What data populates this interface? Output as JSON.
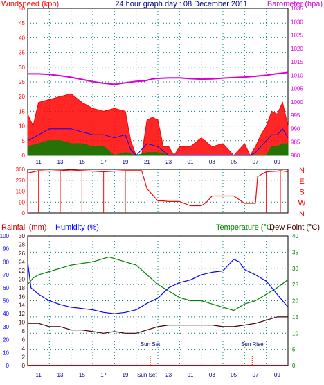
{
  "chart_data": [
    {
      "type": "line",
      "title": "24 hour graph day : 08 December 2011",
      "left_axis_label": "Windspeed (kph)",
      "right_axis_label": "Barometer (hpa)",
      "left_ylim": [
        0,
        50
      ],
      "left_ticks": [
        "0",
        "5",
        "10",
        "15",
        "20",
        "25",
        "30",
        "35",
        "40",
        "45",
        "50"
      ],
      "right_ylim": [
        980,
        1035
      ],
      "right_ticks": [
        "980",
        "985",
        "990",
        "995",
        "1000",
        "1005",
        "1010",
        "1015",
        "1020",
        "1025",
        "1030",
        "1035"
      ],
      "x_tick_labels": [
        "11",
        "13",
        "15",
        "17",
        "19",
        "21",
        "23",
        "01",
        "03",
        "05",
        "07",
        "09"
      ],
      "grid": true,
      "series": [
        {
          "role": "barometer",
          "color": "#d800d8",
          "axis": "right",
          "x": [
            0,
            1,
            2,
            3,
            4,
            5,
            6,
            7,
            8,
            9,
            10,
            10.8,
            11.5,
            12,
            13,
            14,
            15,
            16,
            17,
            18,
            19,
            20,
            21,
            22,
            23,
            24
          ],
          "values": [
            1010.5,
            1010.5,
            1010.3,
            1009.8,
            1009.2,
            1008.4,
            1007.6,
            1007,
            1006.6,
            1007.2,
            1007.7,
            1007.9,
            1008.6,
            1008.8,
            1009.0,
            1009.0,
            1008.7,
            1008.5,
            1008.6,
            1008.9,
            1009.1,
            1009.3,
            1009.6,
            1010.0,
            1010.6,
            1011.0
          ]
        },
        {
          "role": "gust",
          "color": "#ff0000",
          "axis": "left",
          "x": [
            0,
            0.5,
            1,
            2,
            3,
            4,
            5,
            6,
            7,
            8,
            9,
            9.5,
            10,
            10.5,
            11,
            11.5,
            12,
            12.5,
            13,
            13.5,
            14,
            15,
            16,
            17,
            18,
            19,
            20,
            20.5,
            21,
            21.5,
            22,
            22.5,
            23,
            23.5,
            24
          ],
          "values": [
            14,
            10,
            18,
            19,
            20,
            21,
            18,
            16,
            15,
            16,
            15,
            5,
            0,
            0,
            12,
            13,
            12,
            3,
            3,
            0,
            3,
            3,
            6,
            3,
            4,
            0,
            4,
            0,
            3,
            7,
            10,
            15,
            14,
            18,
            10
          ]
        },
        {
          "role": "average",
          "color": "#0000ff",
          "axis": "left",
          "x": [
            0,
            1,
            2,
            3,
            4,
            5,
            6,
            7,
            8,
            9,
            9.5,
            10,
            11,
            12,
            13,
            14,
            15,
            16,
            17,
            18,
            19,
            20,
            20.5,
            21,
            21.5,
            22,
            22.5,
            23,
            23.5,
            24
          ],
          "values": [
            5,
            7,
            9,
            9,
            9,
            8,
            7,
            7,
            6,
            7,
            2,
            0,
            4,
            3,
            0,
            0,
            0,
            0,
            0,
            0,
            0,
            0,
            0,
            1,
            3,
            5,
            7,
            7,
            9,
            6
          ]
        },
        {
          "role": "calm",
          "color": "#008000",
          "axis": "left",
          "x": [
            0,
            1,
            2,
            3,
            4,
            5,
            6,
            7,
            8,
            9,
            10,
            11,
            12,
            13,
            14,
            15,
            16,
            17,
            18,
            19,
            20,
            21,
            22,
            22.5,
            23,
            23.5,
            24
          ],
          "values": [
            3,
            4,
            5,
            5,
            4,
            4,
            3,
            3,
            0,
            1,
            0,
            1,
            1,
            0,
            0,
            0,
            0,
            0,
            0,
            0,
            0,
            0,
            0,
            3,
            3,
            4,
            4
          ]
        }
      ]
    },
    {
      "type": "line",
      "left_ylim": [
        0,
        360
      ],
      "left_ticks": [
        "0",
        "90",
        "180",
        "270",
        "360"
      ],
      "right_labels": [
        "N",
        "W",
        "S",
        "E",
        "N"
      ],
      "grid": true,
      "series": [
        {
          "role": "direction",
          "color": "#ff0000",
          "x": [
            0,
            0.6,
            1,
            2,
            3,
            4,
            5,
            6,
            7,
            8,
            9,
            10.5,
            10.8,
            11,
            11.5,
            12,
            12.5,
            13,
            14,
            15,
            16,
            16.5,
            17,
            18,
            19,
            20,
            21,
            21.2,
            22,
            23,
            23.3,
            24
          ],
          "values": [
            330,
            340,
            350,
            345,
            350,
            355,
            350,
            345,
            340,
            345,
            350,
            350,
            260,
            200,
            150,
            100,
            100,
            95,
            95,
            60,
            60,
            90,
            140,
            140,
            140,
            80,
            80,
            300,
            340,
            345,
            350,
            340
          ]
        }
      ]
    },
    {
      "type": "line",
      "left_axis_label": "Rainfall (mm)",
      "left_axis_label2": "Humidity (%)",
      "right_axis_label": "Temperature (°C)",
      "right_axis_label2": "Dew Point (°C)",
      "rain_ylim": [
        0,
        30
      ],
      "rain_ticks": [
        "0",
        "2",
        "4",
        "6",
        "8",
        "10",
        "12",
        "14",
        "16",
        "18",
        "20",
        "22",
        "24",
        "26",
        "28",
        "30"
      ],
      "humidity_ylim": [
        0,
        100
      ],
      "humidity_ticks": [
        "0",
        "10",
        "20",
        "30",
        "40",
        "50",
        "60",
        "70",
        "80",
        "90",
        "100"
      ],
      "temp_ylim": [
        0,
        40
      ],
      "temp_ticks": [
        "0",
        "5",
        "10",
        "15",
        "20",
        "25",
        "30",
        "35",
        "40"
      ],
      "x_tick_labels": [
        "11",
        "13",
        "15",
        "17",
        "19",
        "Sun Set",
        "23",
        "01",
        "03",
        "05",
        "07",
        "09"
      ],
      "annotations": [
        {
          "text": "Sun Set",
          "x": 11.3
        },
        {
          "text": "Sun Rise",
          "x": 20.7
        }
      ],
      "grid": true,
      "series": [
        {
          "role": "temperature",
          "color": "#008000",
          "axis": "temp",
          "x": [
            0,
            0.5,
            1,
            2,
            3,
            4,
            5,
            6,
            7,
            7.5,
            8,
            9,
            10,
            11,
            12,
            13,
            14,
            15,
            16,
            17,
            18,
            19,
            20,
            21,
            22,
            23,
            24
          ],
          "values": [
            25,
            27,
            28,
            29,
            30,
            31,
            31.5,
            32,
            33,
            33.5,
            33,
            32,
            31,
            28,
            25,
            23,
            21,
            20,
            20,
            19,
            18,
            17,
            19,
            20,
            22,
            24,
            26.5
          ]
        },
        {
          "role": "humidity",
          "color": "#0000ff",
          "axis": "humidity",
          "x": [
            0,
            0.3,
            1,
            2,
            3,
            4,
            5,
            6,
            7,
            8,
            9,
            10,
            11,
            12,
            13,
            14,
            15,
            16,
            17,
            18,
            19,
            19.5,
            20,
            21,
            22,
            23,
            24
          ],
          "values": [
            80,
            60,
            55,
            50,
            47,
            45,
            44,
            43,
            41,
            40,
            41,
            43,
            48,
            52,
            60,
            64,
            66,
            70,
            72,
            73,
            82,
            80,
            74,
            70,
            65,
            55,
            45
          ]
        },
        {
          "role": "dew_point",
          "color": "#400000",
          "axis": "temp",
          "x": [
            0,
            1,
            2,
            3,
            4,
            5,
            6,
            7,
            8,
            9,
            10,
            11,
            12,
            13,
            14,
            15,
            16,
            17,
            18,
            19,
            20,
            21,
            22,
            23,
            24
          ],
          "values": [
            13,
            13,
            12,
            12,
            11,
            11,
            10.5,
            10,
            10.5,
            10,
            10,
            11,
            12,
            12.5,
            12.5,
            12.5,
            12.5,
            12.5,
            12,
            12,
            12.5,
            13,
            14,
            15,
            15
          ]
        },
        {
          "role": "rainfall",
          "color": "#cc0000",
          "axis": "rain",
          "x": [
            0,
            24
          ],
          "values": [
            0,
            0
          ]
        }
      ]
    }
  ]
}
